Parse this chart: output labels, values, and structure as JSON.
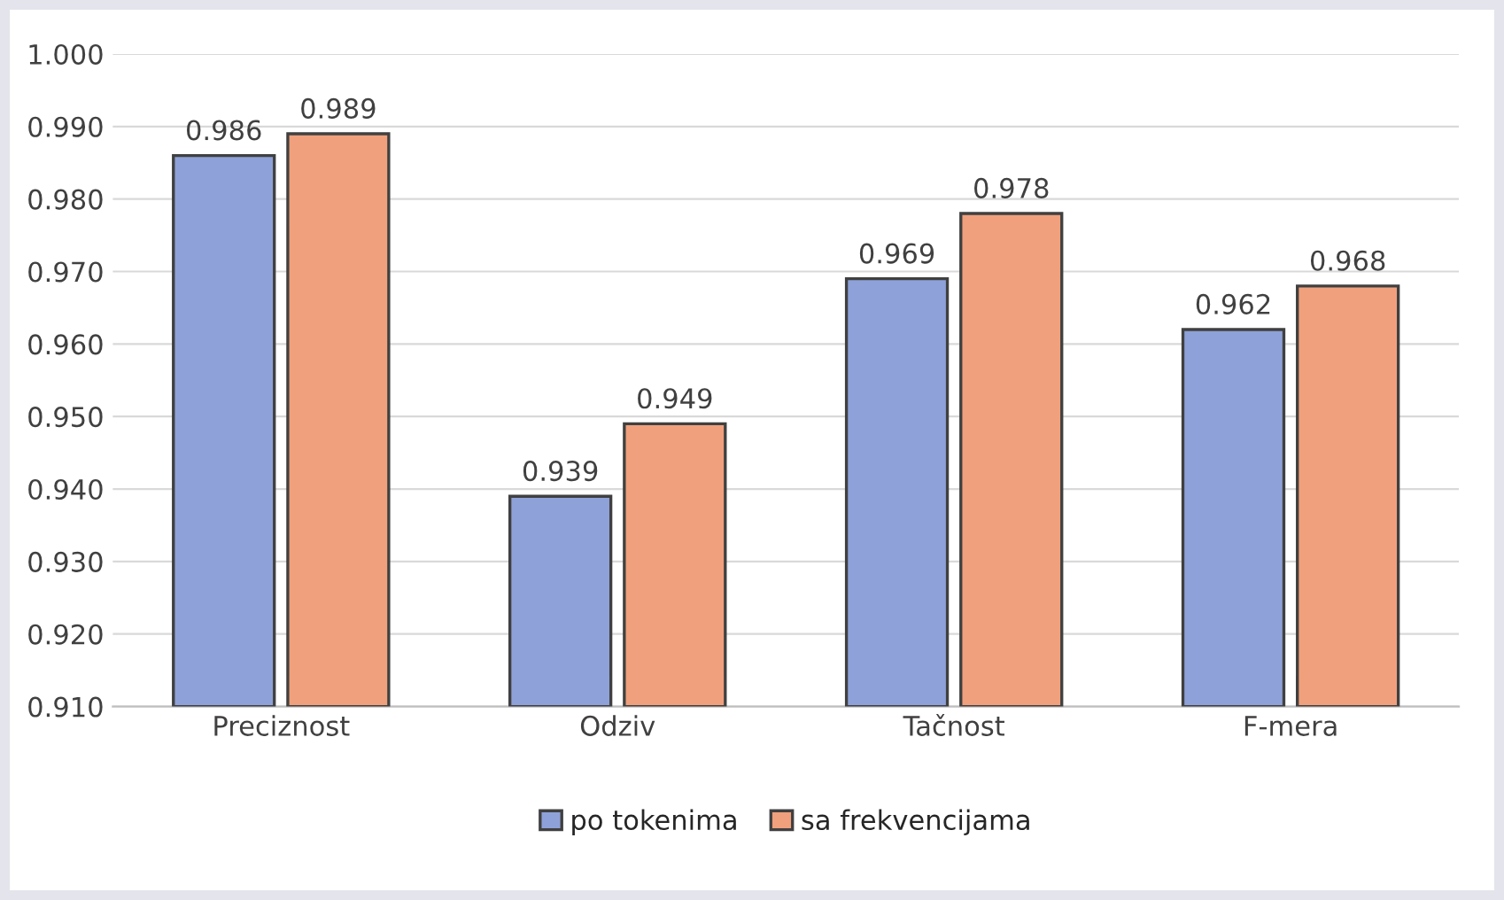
{
  "chart_data": {
    "type": "bar",
    "categories": [
      "Preciznost",
      "Odziv",
      "Tačnost",
      "F-mera"
    ],
    "series": [
      {
        "name": "po tokenima",
        "color": "#8ea1d8",
        "values": [
          0.986,
          0.939,
          0.969,
          0.962
        ]
      },
      {
        "name": "sa frekvencijama",
        "color": "#f0a07c",
        "values": [
          0.989,
          0.949,
          0.978,
          0.968
        ]
      }
    ],
    "ylim": [
      0.91,
      1.0
    ],
    "yticks": [
      {
        "value": 0.91,
        "label": "0.910"
      },
      {
        "value": 0.92,
        "label": "0.920"
      },
      {
        "value": 0.93,
        "label": "0.930"
      },
      {
        "value": 0.94,
        "label": "0.940"
      },
      {
        "value": 0.95,
        "label": "0.950"
      },
      {
        "value": 0.96,
        "label": "0.960"
      },
      {
        "value": 0.97,
        "label": "0.970"
      },
      {
        "value": 0.98,
        "label": "0.980"
      },
      {
        "value": 0.99,
        "label": "0.990"
      },
      {
        "value": 1.0,
        "label": "1.000"
      }
    ],
    "grid": "y",
    "legend": "bottom",
    "data_labels": true
  }
}
